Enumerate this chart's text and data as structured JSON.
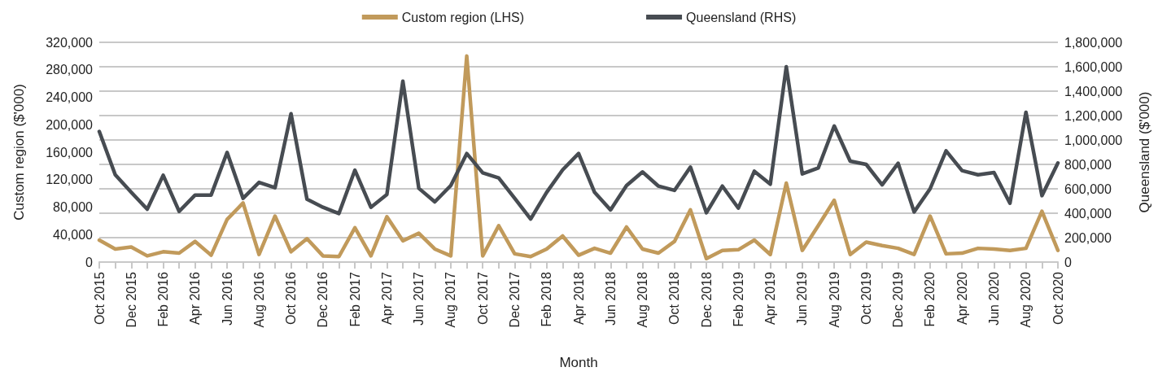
{
  "chart_data": {
    "type": "line",
    "xlabel": "Month",
    "ylabel": "Custom region ($'000)",
    "y2label": "Queensland ($'000)",
    "categories": [
      "Oct 2015",
      null,
      "Dec 2015",
      null,
      "Feb 2016",
      null,
      "Apr 2016",
      null,
      "Jun 2016",
      null,
      "Aug 2016",
      null,
      "Oct 2016",
      null,
      "Dec 2016",
      null,
      "Feb 2017",
      null,
      "Apr 2017",
      null,
      "Jun 2017",
      null,
      "Aug 2017",
      null,
      "Oct 2017",
      null,
      "Dec 2017",
      null,
      "Feb 2018",
      null,
      "Apr 2018",
      null,
      "Jun 2018",
      null,
      "Aug 2018",
      null,
      "Oct 2018",
      null,
      "Dec 2018",
      null,
      "Feb 2019",
      null,
      "Apr 2019",
      null,
      "Jun 2019",
      null,
      "Aug 2019",
      null,
      "Oct 2019",
      null,
      "Dec 2019",
      null,
      "Feb 2020",
      null,
      "Apr 2020",
      null,
      "Jun 2020",
      null,
      "Aug 2020",
      null,
      "Oct 2020"
    ],
    "series": [
      {
        "name": "Custom region (LHS)",
        "color": "#c19a5b",
        "values": [
          32000,
          19000,
          22000,
          9000,
          15000,
          13000,
          30000,
          10000,
          62000,
          86000,
          11000,
          67000,
          15000,
          34000,
          9000,
          8000,
          50000,
          9000,
          66000,
          31000,
          42000,
          19000,
          9000,
          300000,
          9000,
          53000,
          12000,
          8000,
          19000,
          38000,
          10000,
          20000,
          13000,
          51000,
          19000,
          13000,
          30000,
          76000,
          5000,
          17000,
          18000,
          32000,
          11000,
          115000,
          17000,
          53000,
          90000,
          11000,
          29000,
          24000,
          20000,
          11000,
          67000,
          12000,
          13000,
          20000,
          19000,
          17000,
          20000,
          74000,
          17000
        ]
      },
      {
        "name": "Queensland (RHS)",
        "color": "#474c52",
        "axis": "y2",
        "values": [
          1070000,
          715000,
          571000,
          433000,
          711000,
          415000,
          549000,
          549000,
          898000,
          522000,
          653000,
          609000,
          1215000,
          515000,
          449000,
          398000,
          753000,
          449000,
          553000,
          1482000,
          604000,
          493000,
          627000,
          889000,
          731000,
          689000,
          522000,
          353000,
          571000,
          755000,
          889000,
          571000,
          427000,
          627000,
          738000,
          622000,
          587000,
          778000,
          404000,
          622000,
          442000,
          744000,
          638000,
          1600000,
          722000,
          771000,
          1115000,
          827000,
          800000,
          633000,
          809000,
          411000,
          600000,
          911000,
          749000,
          715000,
          733000,
          482000,
          1227000,
          544000,
          811000
        ]
      }
    ],
    "ylim": [
      0,
      320000
    ],
    "yticks": [
      0,
      {
        "value": 40000,
        "label": "40,000"
      },
      {
        "value": 80000,
        "label": "80,000"
      },
      {
        "value": 120000,
        "label": "120,000"
      },
      {
        "value": 160000,
        "label": "160,000"
      },
      {
        "value": 200000,
        "label": "200,000"
      },
      {
        "value": 240000,
        "label": "240,000"
      },
      {
        "value": 280000,
        "label": "280,000"
      },
      {
        "value": 320000,
        "label": "320,000"
      }
    ],
    "y2lim": [
      0,
      1800000
    ],
    "y2ticks": [
      0,
      {
        "value": 200000,
        "label": "200,000"
      },
      {
        "value": 400000,
        "label": "400,000"
      },
      {
        "value": 600000,
        "label": "600,000"
      },
      {
        "value": 800000,
        "label": "800,000"
      },
      {
        "value": 1000000,
        "label": "1,000,000"
      },
      {
        "value": 1200000,
        "label": "1,200,000"
      },
      {
        "value": 1400000,
        "label": "1,400,000"
      },
      {
        "value": 1600000,
        "label": "1,600,000"
      },
      {
        "value": 1800000,
        "label": "1,800,000"
      }
    ],
    "grid": "y",
    "legend": "top",
    "marker": "none",
    "line_style": "solid"
  }
}
